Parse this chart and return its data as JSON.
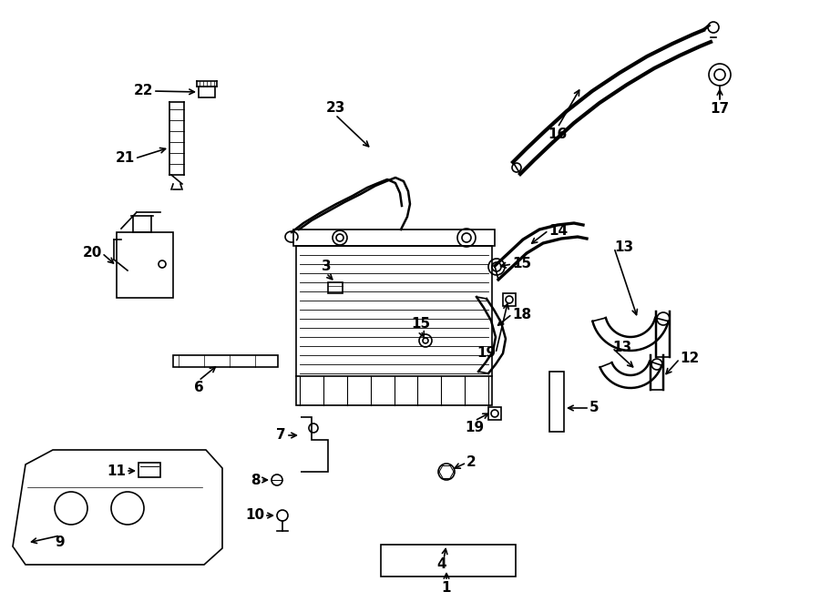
{
  "bg_color": "#ffffff",
  "lc": "#000000",
  "lw": 1.2,
  "fs": 11,
  "figsize": [
    9.0,
    6.61
  ],
  "dpi": 100
}
